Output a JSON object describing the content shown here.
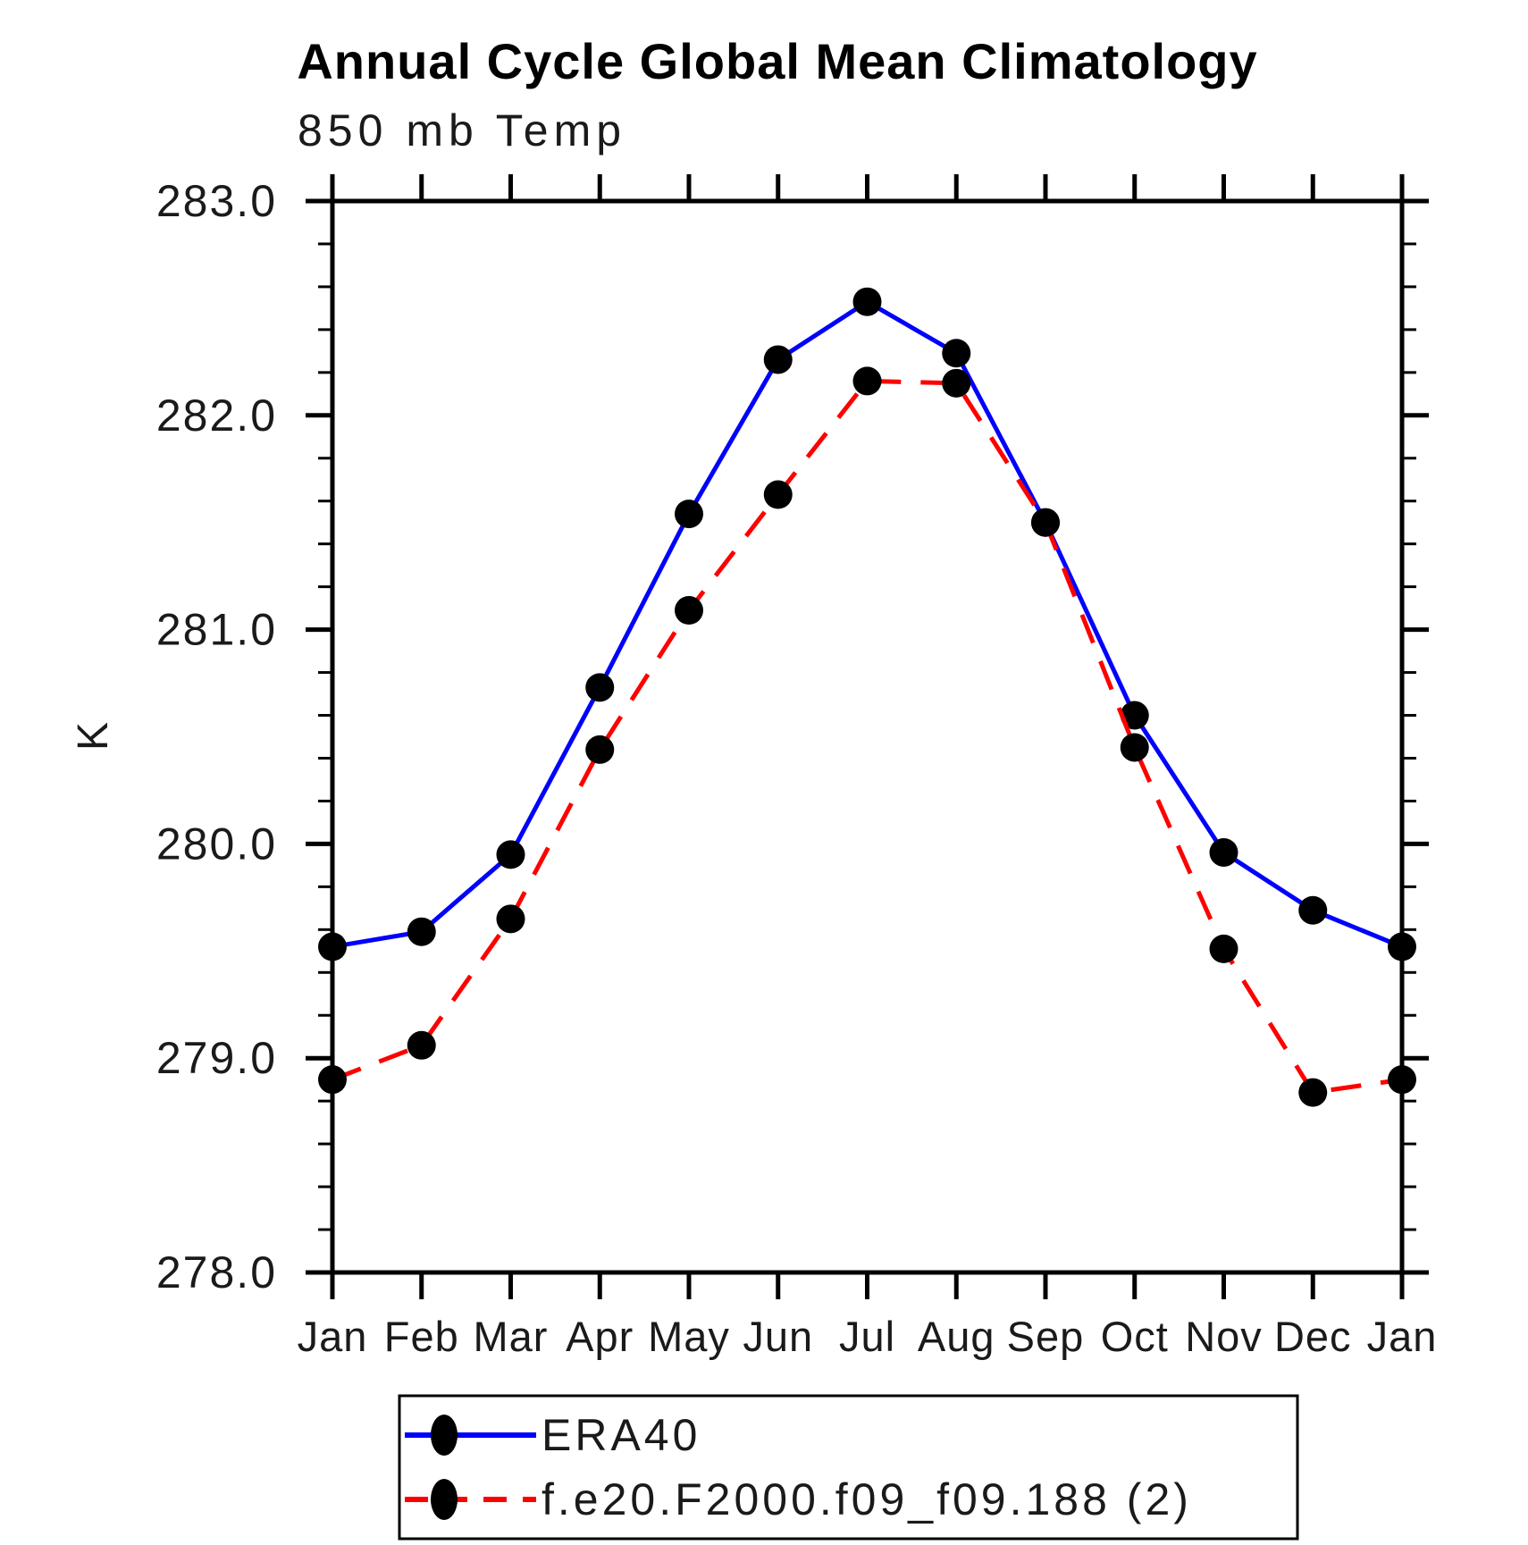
{
  "chart_data": {
    "type": "line",
    "title": "Annual Cycle Global Mean Climatology",
    "subtitle": "850 mb Temp",
    "ylabel": "K",
    "xlabel": "",
    "x_tick_labels": [
      "Jan",
      "Feb",
      "Mar",
      "Apr",
      "May",
      "Jun",
      "Jul",
      "Aug",
      "Sep",
      "Oct",
      "Nov",
      "Dec",
      "Jan"
    ],
    "y_ticks": [
      278.0,
      279.0,
      280.0,
      281.0,
      282.0,
      283.0
    ],
    "y_tick_labels": [
      "278.0",
      "279.0",
      "280.0",
      "281.0",
      "282.0",
      "283.0"
    ],
    "ylim": [
      278.0,
      283.0
    ],
    "y_minor_tick_step": 0.2,
    "grid": false,
    "legend_position": "bottom-left",
    "series": [
      {
        "name": "ERA40",
        "color": "#0000ff",
        "line_style": "solid",
        "marker": "filled-circle",
        "marker_color": "#000000",
        "values": [
          279.52,
          279.59,
          279.95,
          280.73,
          281.54,
          282.26,
          282.53,
          282.29,
          281.5,
          280.6,
          279.96,
          279.69,
          279.52
        ]
      },
      {
        "name": "f.e20.F2000.f09_f09.188 (2)",
        "color": "#ff0000",
        "line_style": "dashed",
        "marker": "filled-circle",
        "marker_color": "#000000",
        "values": [
          278.9,
          279.06,
          279.65,
          280.44,
          281.09,
          281.63,
          282.16,
          282.15,
          281.5,
          280.45,
          279.51,
          278.84,
          278.9
        ]
      }
    ]
  },
  "colors": {
    "background": "#ffffff",
    "axis": "#000000",
    "text": "#000000",
    "era40_line": "#0000ff",
    "model_line": "#ff0000",
    "marker": "#000000"
  }
}
